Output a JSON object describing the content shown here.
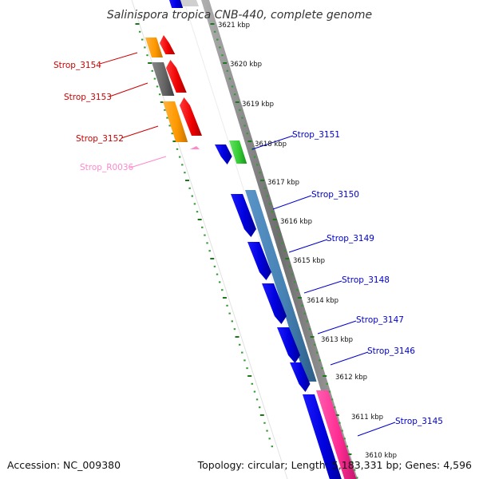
{
  "title": "Salinispora tropica CNB-440, complete genome",
  "footer": {
    "accession": "Accession: NC_009380",
    "summary": "Topology: circular; Length: 5,183,331 bp; Genes: 4,596"
  },
  "colors": {
    "backbone": "#8c8c8c",
    "tick_major": "#1a7a1a",
    "tick_minor": "#2f9a2f",
    "label_left": "#cc0000",
    "label_rna": "#ff88cc",
    "label_right": "#0000cc",
    "gene_orange": "#ff9900",
    "gene_gray": "#666666",
    "gene_red": "#ee0000",
    "gene_blue": "#0000ee",
    "gene_green": "#33cc33",
    "gene_steel": "#4682b4",
    "gene_pink": "#ff3399",
    "rna_pink": "#ff88cc"
  },
  "kbp_labels": [
    "3621 kbp",
    "3620 kbp",
    "3619 kbp",
    "3618 kbp",
    "3617 kbp",
    "3616 kbp",
    "3615 kbp",
    "3614 kbp",
    "3613 kbp",
    "3612 kbp",
    "3611 kbp",
    "3610 kbp"
  ],
  "gene_labels_left": [
    "Strop_3154",
    "Strop_3153",
    "Strop_3152"
  ],
  "rna_label": "Strop_R0036",
  "gene_labels_right": [
    "Strop_3151",
    "Strop_3150",
    "Strop_3149",
    "Strop_3148",
    "Strop_3147",
    "Strop_3146",
    "Strop_3145"
  ]
}
